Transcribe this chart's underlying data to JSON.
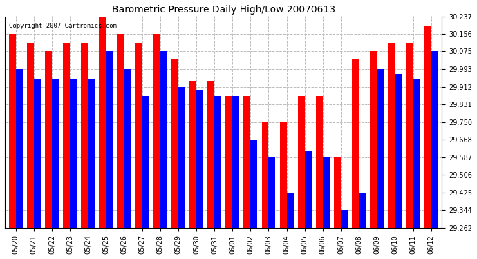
{
  "title": "Barometric Pressure Daily High/Low 20070613",
  "copyright": "Copyright 2007 Cartronics.com",
  "yticks": [
    30.237,
    30.156,
    30.075,
    29.993,
    29.912,
    29.831,
    29.75,
    29.668,
    29.587,
    29.506,
    29.425,
    29.344,
    29.262
  ],
  "ymin": 29.262,
  "ymax": 30.237,
  "categories": [
    "05/20",
    "05/21",
    "05/22",
    "05/23",
    "05/24",
    "05/25",
    "05/26",
    "05/27",
    "05/28",
    "05/29",
    "05/30",
    "05/31",
    "06/01",
    "06/02",
    "06/03",
    "06/04",
    "06/05",
    "06/06",
    "06/07",
    "06/08",
    "06/09",
    "06/10",
    "06/11",
    "06/12"
  ],
  "highs": [
    30.156,
    30.116,
    30.075,
    30.116,
    30.116,
    30.237,
    30.156,
    30.116,
    30.156,
    30.04,
    29.94,
    29.94,
    29.87,
    29.87,
    29.75,
    29.75,
    29.87,
    29.87,
    29.587,
    30.04,
    30.075,
    30.116,
    30.116,
    30.195
  ],
  "lows": [
    29.993,
    29.95,
    29.95,
    29.95,
    29.95,
    30.075,
    29.993,
    29.87,
    30.075,
    29.912,
    29.9,
    29.87,
    29.87,
    29.668,
    29.587,
    29.425,
    29.62,
    29.587,
    29.344,
    29.425,
    29.993,
    29.97,
    29.95,
    30.075
  ],
  "high_color": "#FF0000",
  "low_color": "#0000FF",
  "bg_color": "#FFFFFF",
  "bar_width": 0.38,
  "grid_color": "#BBBBBB",
  "title_fontsize": 10,
  "tick_fontsize": 7,
  "copyright_fontsize": 6.5
}
